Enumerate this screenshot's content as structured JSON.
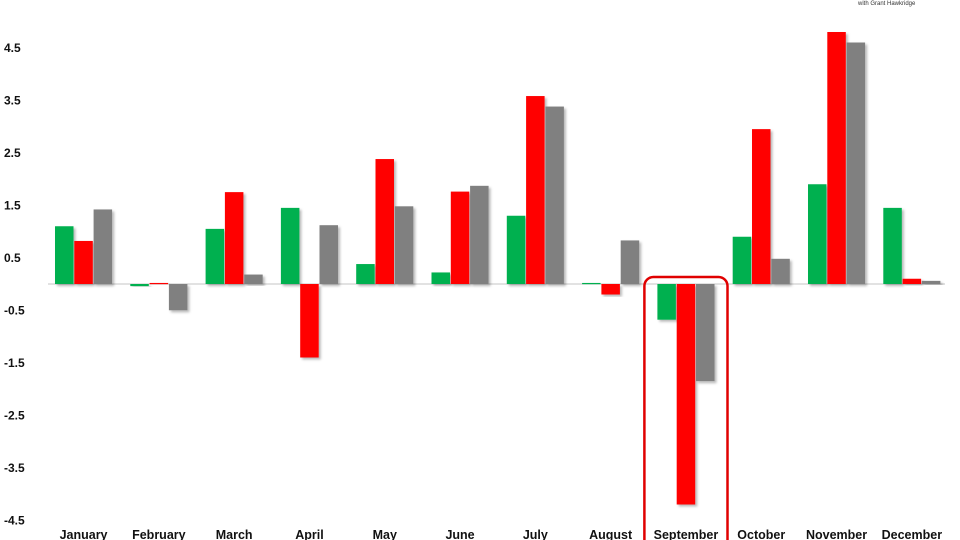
{
  "chart_data": {
    "type": "bar",
    "categories": [
      "January",
      "February",
      "March",
      "April",
      "May",
      "June",
      "July",
      "August",
      "September",
      "October",
      "November",
      "December"
    ],
    "series": [
      {
        "color": "#00b050",
        "values": [
          1.1,
          -0.04,
          1.05,
          1.45,
          0.38,
          0.22,
          1.3,
          0.02,
          -0.68,
          0.9,
          1.9,
          1.45
        ]
      },
      {
        "color": "#ff0000",
        "values": [
          0.82,
          0.02,
          1.75,
          -1.4,
          2.38,
          1.76,
          3.58,
          -0.2,
          -4.2,
          2.95,
          4.8,
          0.1
        ]
      },
      {
        "color": "#808080",
        "values": [
          1.42,
          -0.5,
          0.18,
          1.12,
          1.48,
          1.87,
          3.38,
          0.83,
          -1.85,
          0.48,
          4.6,
          0.06
        ]
      }
    ],
    "yticks": [
      "4.5",
      "3.5",
      "2.5",
      "1.5",
      "0.5",
      "-0.5",
      "-1.5",
      "-2.5",
      "-3.5",
      "-4.5"
    ],
    "ylim": [
      -4.5,
      5.0
    ],
    "grid": false,
    "legend": "none",
    "highlight": {
      "category": "September",
      "color": "#e00000"
    },
    "credit": "with Grant Hawkridge"
  }
}
